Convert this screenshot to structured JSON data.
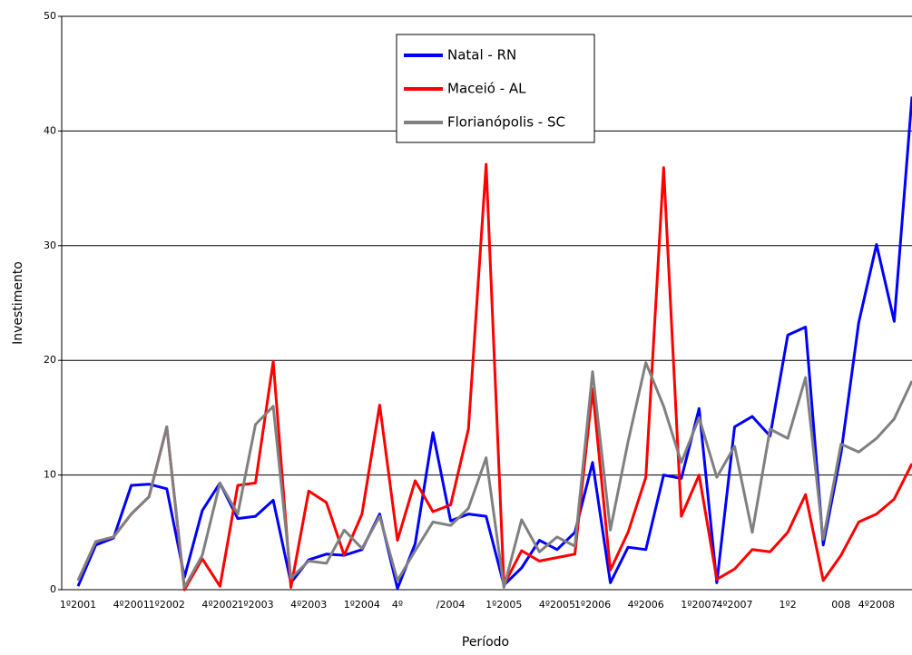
{
  "chart_data": {
    "type": "line",
    "x_label": "Período",
    "y_label": "Investimento",
    "categories": [
      "1º2001",
      null,
      null,
      "4º2001",
      null,
      "1º2002",
      null,
      null,
      "4º2002",
      null,
      "1º2003",
      null,
      null,
      "4º2003",
      null,
      null,
      "1º2004",
      null,
      "4º",
      null,
      null,
      "/2004",
      null,
      null,
      "1º2005",
      null,
      null,
      "4º2005",
      null,
      "1º2006",
      null,
      null,
      "4º2006",
      null,
      null,
      "1º2007",
      null,
      "4º2007",
      null,
      null,
      "1º2",
      null,
      null,
      "008",
      null,
      "4º2008",
      null,
      null
    ],
    "series": [
      {
        "name": "Natal - RN",
        "color": "#0000ff",
        "values": [
          0.3,
          3.9,
          4.5,
          9.1,
          9.2,
          8.8,
          1.1,
          6.9,
          9.3,
          6.2,
          6.4,
          7.8,
          0.6,
          2.6,
          3.1,
          3.0,
          3.5,
          6.6,
          0.1,
          4.0,
          13.7,
          6.0,
          6.6,
          6.4,
          0.4,
          1.9,
          4.3,
          3.5,
          5.0,
          11.1,
          0.6,
          3.7,
          3.5,
          10.0,
          9.7,
          15.8,
          0.6,
          14.2,
          15.1,
          13.4,
          22.2,
          22.9,
          3.9,
          11.9,
          23.3,
          30.1,
          23.4,
          43.0
        ]
      },
      {
        "name": "Maceió - AL",
        "color": "#ff0000",
        "values": [
          0.8,
          4.2,
          4.6,
          6.6,
          8.1,
          14.2,
          0.0,
          2.7,
          0.3,
          9.1,
          9.3,
          19.9,
          0.2,
          8.6,
          7.6,
          3.0,
          6.6,
          16.1,
          4.3,
          9.5,
          6.8,
          7.4,
          14.0,
          37.1,
          0.4,
          3.4,
          2.5,
          2.8,
          3.1,
          17.5,
          1.7,
          5.0,
          9.8,
          36.8,
          6.4,
          10.0,
          0.9,
          1.8,
          3.5,
          3.3,
          5.0,
          8.3,
          0.8,
          3.0,
          5.9,
          6.6,
          7.9,
          11.0
        ]
      },
      {
        "name": "Florianópolis - SC",
        "color": "#808080",
        "values": [
          0.8,
          4.2,
          4.6,
          6.6,
          8.1,
          14.2,
          0.2,
          3.0,
          9.3,
          6.6,
          14.4,
          16.0,
          1.0,
          2.5,
          2.3,
          5.2,
          3.6,
          6.4,
          0.8,
          3.4,
          5.9,
          5.6,
          7.1,
          11.5,
          0.2,
          6.1,
          3.3,
          4.6,
          3.8,
          19.0,
          5.2,
          12.9,
          19.8,
          16.0,
          11.1,
          15.0,
          9.8,
          12.5,
          5.0,
          14.0,
          13.2,
          18.5,
          4.4,
          12.7,
          12.0,
          13.2,
          14.9,
          18.2
        ]
      }
    ],
    "ylim": [
      0,
      50
    ],
    "yticks": [
      0,
      10,
      20,
      30,
      40,
      50
    ],
    "grid": true
  }
}
